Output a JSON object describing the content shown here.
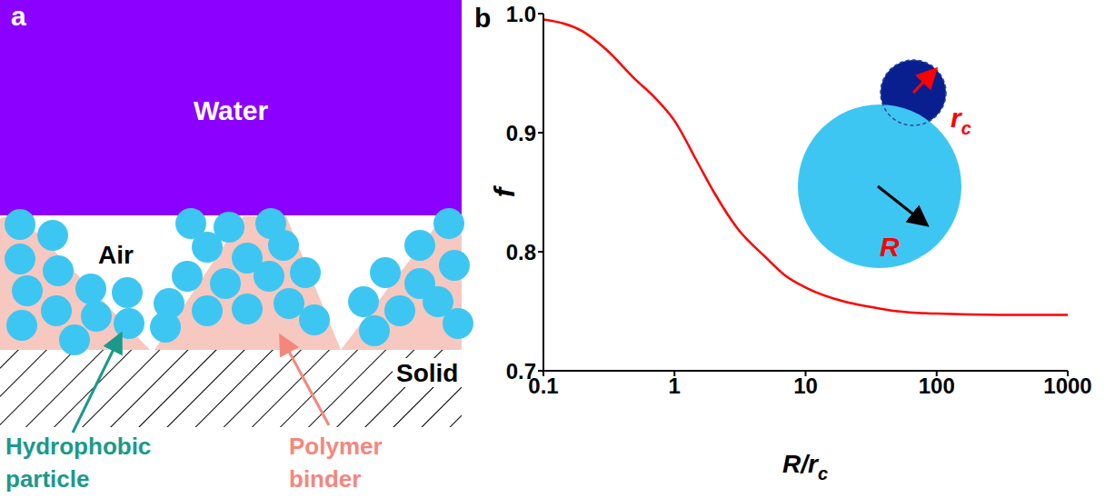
{
  "panel_a": {
    "label": "a",
    "regions": {
      "top": "Water",
      "middle": "Air",
      "bottom": "Solid"
    },
    "annotations": [
      "Hydrophobic particle",
      "Polymer binder"
    ]
  },
  "chart_data": {
    "type": "line",
    "panel_label": "b",
    "x_label": "R/rc",
    "y_label": "f",
    "x": [
      0.1,
      0.2,
      0.3,
      0.5,
      0.7,
      1,
      1.5,
      2,
      3,
      5,
      7,
      10,
      20,
      30,
      50,
      100,
      300,
      1000
    ],
    "values": [
      0.995,
      0.985,
      0.97,
      0.945,
      0.93,
      0.91,
      0.875,
      0.85,
      0.82,
      0.795,
      0.78,
      0.77,
      0.758,
      0.754,
      0.75,
      0.748,
      0.747,
      0.747
    ],
    "color": "#ff0000",
    "log": "x",
    "grid": false,
    "xlim": [
      0.1,
      1000
    ],
    "xticks": [
      0.1,
      1,
      10,
      100,
      1000
    ],
    "ylim": [
      0.7,
      1
    ],
    "yticks": [
      0.7,
      0.8,
      0.9,
      {
        "value": 1,
        "label": "1.0"
      }
    ],
    "annotations": [
      "R",
      "rc"
    ]
  }
}
